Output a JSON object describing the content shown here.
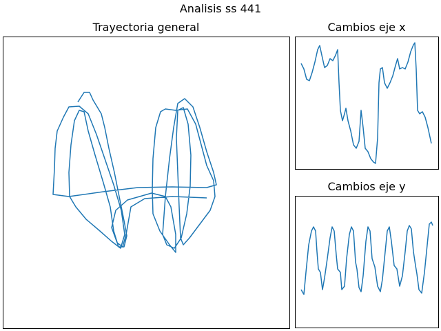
{
  "title": "Analisis ss 441",
  "chart_data": [
    {
      "type": "line",
      "title": "Trayectoria general",
      "color": "#1f77b4",
      "xlim": [
        4,
        420
      ],
      "ylim": [
        476,
        53
      ],
      "x": [
        113,
        122,
        130,
        135,
        147,
        152,
        158,
        166,
        174,
        180,
        184,
        180,
        172,
        165,
        160,
        150,
        138,
        128,
        122,
        115,
        108,
        103,
        100,
        101,
        110,
        125,
        145,
        162,
        175,
        181,
        176,
        165,
        152,
        140,
        128,
        115,
        100,
        92,
        83,
        80,
        79,
        77,
        100,
        150,
        200,
        250,
        300,
        314,
        310,
        300,
        290,
        280,
        268,
        258,
        252,
        246,
        240,
        236,
        242,
        253,
        263,
        271,
        276,
        277,
        273,
        266,
        258,
        256,
        258,
        260,
        262,
        266,
        275,
        290,
        305,
        312,
        310,
        300,
        292,
        284,
        272,
        255,
        240,
        233,
        226,
        222,
        221,
        222,
        232,
        246,
        255,
        255,
        248,
        240,
        220,
        185,
        168,
        162,
        170,
        178,
        183,
        190,
        210,
        250,
        300
      ],
      "values": [
        148,
        134,
        134,
        145,
        165,
        185,
        215,
        250,
        290,
        320,
        342,
        358,
        358,
        335,
        300,
        265,
        225,
        190,
        162,
        160,
        175,
        210,
        250,
        285,
        300,
        318,
        335,
        350,
        360,
        340,
        305,
        268,
        230,
        195,
        165,
        154,
        155,
        170,
        190,
        215,
        245,
        282,
        285,
        278,
        272,
        271,
        272,
        268,
        250,
        220,
        185,
        155,
        143,
        150,
        185,
        230,
        285,
        340,
        355,
        360,
        345,
        310,
        270,
        225,
        180,
        156,
        160,
        200,
        250,
        300,
        345,
        355,
        345,
        325,
        305,
        285,
        262,
        240,
        210,
        180,
        158,
        160,
        158,
        162,
        185,
        230,
        275,
        310,
        335,
        355,
        366,
        340,
        300,
        285,
        280,
        290,
        305,
        330,
        352,
        358,
        340,
        300,
        288,
        285,
        287
      ]
    },
    {
      "type": "line",
      "title": "Cambios eje x",
      "color": "#1f77b4",
      "xlim": [
        0,
        208
      ],
      "ylim": [
        0,
        192
      ],
      "x": [
        9,
        13,
        17,
        21,
        25,
        29,
        33,
        36,
        39,
        43,
        47,
        51,
        55,
        59,
        62,
        64,
        66,
        69,
        72,
        74,
        77,
        81,
        85,
        89,
        93,
        96,
        99,
        102,
        106,
        110,
        114,
        117,
        120,
        122,
        124,
        127,
        130,
        134,
        138,
        142,
        146,
        149,
        152,
        156,
        160,
        164,
        168,
        172,
        174,
        176,
        178,
        181,
        185,
        189,
        193,
        198
      ],
      "values": [
        153,
        145,
        130,
        128,
        140,
        155,
        173,
        179,
        165,
        147,
        150,
        160,
        157,
        165,
        173,
        125,
        85,
        70,
        80,
        88,
        70,
        55,
        35,
        30,
        40,
        85,
        60,
        30,
        25,
        15,
        10,
        8,
        45,
        125,
        145,
        147,
        125,
        117,
        125,
        135,
        150,
        160,
        145,
        147,
        145,
        155,
        170,
        180,
        183,
        145,
        85,
        80,
        83,
        75,
        60,
        37
      ]
    },
    {
      "type": "line",
      "title": "Cambios eje y",
      "color": "#1f77b4",
      "xlim": [
        0,
        208
      ],
      "ylim": [
        0,
        191
      ],
      "x": [
        9,
        13,
        16,
        20,
        24,
        27,
        30,
        32,
        34,
        37,
        40,
        43,
        47,
        51,
        54,
        57,
        60,
        62,
        66,
        68,
        72,
        75,
        79,
        82,
        85,
        88,
        90,
        93,
        96,
        99,
        103,
        106,
        109,
        112,
        116,
        120,
        124,
        127,
        131,
        134,
        137,
        140,
        144,
        148,
        152,
        156,
        160,
        163,
        166,
        169,
        172,
        175,
        177,
        180,
        184,
        188,
        192,
        195,
        198,
        200
      ],
      "values": [
        55,
        48,
        80,
        120,
        140,
        146,
        140,
        110,
        85,
        80,
        55,
        72,
        100,
        130,
        146,
        140,
        105,
        85,
        80,
        55,
        60,
        100,
        135,
        146,
        140,
        95,
        85,
        58,
        52,
        75,
        125,
        146,
        140,
        100,
        88,
        60,
        52,
        70,
        110,
        140,
        146,
        125,
        90,
        85,
        60,
        75,
        110,
        140,
        148,
        143,
        110,
        90,
        78,
        55,
        50,
        80,
        120,
        150,
        153,
        148
      ]
    }
  ]
}
